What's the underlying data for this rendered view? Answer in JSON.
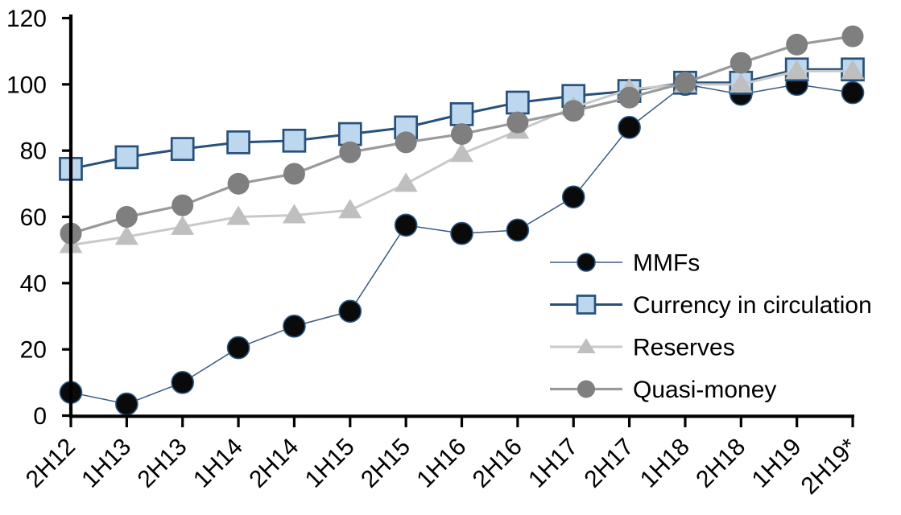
{
  "chart_data": {
    "type": "line",
    "title": "",
    "xlabel": "",
    "ylabel": "",
    "grid": false,
    "categories": [
      "2H12",
      "1H13",
      "2H13",
      "1H14",
      "2H14",
      "1H15",
      "2H15",
      "1H16",
      "2H16",
      "1H17",
      "2H17",
      "1H18",
      "2H18",
      "1H19",
      "2H19*"
    ],
    "series": [
      {
        "name": "MMFs",
        "marker": "circle",
        "marker_fill": "#0a0a0a",
        "marker_stroke": "#2a5784",
        "line_color": "#3a5a82",
        "line_width": 1.5,
        "values": [
          7,
          3.5,
          10,
          20.5,
          27,
          31.5,
          57.5,
          55,
          56,
          66,
          87,
          100,
          97,
          100,
          97.5
        ]
      },
      {
        "name": "Currency in circulation",
        "marker": "square",
        "marker_fill": "#bdd7ee",
        "marker_stroke": "#27517c",
        "line_color": "#27517c",
        "line_width": 3,
        "values": [
          74.5,
          78,
          80.5,
          82.5,
          83,
          85,
          87,
          91,
          94.5,
          96.5,
          98,
          100.5,
          100.5,
          104.5,
          104.5
        ]
      },
      {
        "name": "Reserves",
        "marker": "triangle",
        "marker_fill": "#bfbfbf",
        "marker_stroke": "none",
        "line_color": "#c9c9c9",
        "line_width": 3,
        "values": [
          51.5,
          54,
          57,
          60,
          60.5,
          62,
          70,
          79,
          86,
          93,
          98.5,
          100,
          100,
          104,
          104
        ]
      },
      {
        "name": "Quasi-money",
        "marker": "circle",
        "marker_fill": "#7f7f7f",
        "marker_stroke": "none",
        "line_color": "#9a9a9a",
        "line_width": 3.2,
        "values": [
          55,
          60,
          63.5,
          70,
          73,
          79.5,
          82.5,
          85,
          88.5,
          92,
          96,
          100.5,
          106.5,
          112,
          114.5
        ]
      }
    ],
    "y_axis": {
      "min": 0,
      "max": 120,
      "tick_interval": 20,
      "tick_labels": [
        "0",
        "20",
        "40",
        "60",
        "80",
        "100",
        "120"
      ]
    },
    "x_axis": {
      "label_rotation_deg": -45
    },
    "legend": {
      "position": "inside-right",
      "entries": [
        "MMFs",
        "Currency in circulation",
        "Reserves",
        "Quasi-money"
      ]
    },
    "axis_color": "#000000"
  }
}
